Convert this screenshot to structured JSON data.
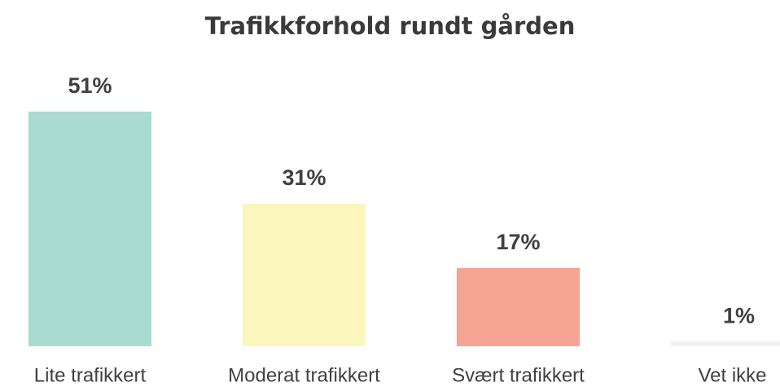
{
  "chart_data": {
    "type": "bar",
    "title": "Trafikkforhold rundt gården",
    "categories": [
      "Lite trafikkert",
      "Moderat trafikkert",
      "Svært trafikkert",
      "Vet ikke"
    ],
    "values": [
      51,
      31,
      17,
      1
    ],
    "value_labels": [
      "51%",
      "31%",
      "17%",
      "1%"
    ],
    "colors": [
      "#a9dbd0",
      "#faf6bd",
      "#f5a493",
      "#f1f1f1"
    ]
  }
}
